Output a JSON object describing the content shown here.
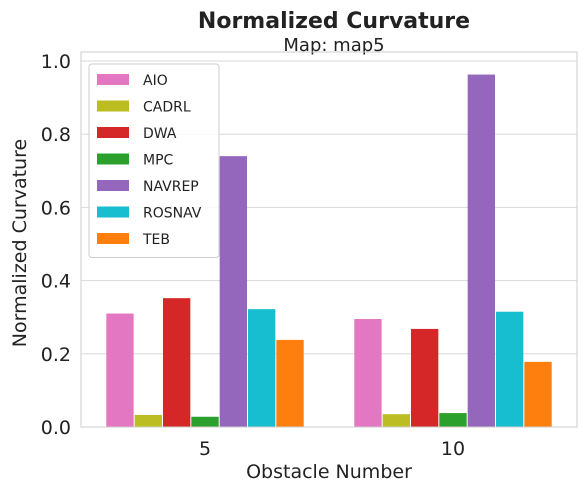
{
  "chart_data": {
    "type": "bar",
    "title": "Normalized Curvature",
    "subtitle": "Map: map5",
    "xlabel": "Obstacle Number",
    "ylabel": "Normalized Curvature",
    "categories": [
      "5",
      "10"
    ],
    "ylim": [
      0,
      1.0
    ],
    "yticks": [
      "0.0",
      "0.2",
      "0.4",
      "0.6",
      "0.8",
      "1.0"
    ],
    "grid": true,
    "legend_position": "top-left",
    "series": [
      {
        "name": "AIO",
        "color": "#e377c2",
        "values": [
          0.31,
          0.295
        ]
      },
      {
        "name": "CADRL",
        "color": "#bcbd22",
        "values": [
          0.033,
          0.035
        ]
      },
      {
        "name": "DWA",
        "color": "#d62728",
        "values": [
          0.352,
          0.268
        ]
      },
      {
        "name": "MPC",
        "color": "#2ca02c",
        "values": [
          0.028,
          0.038
        ]
      },
      {
        "name": "NAVREP",
        "color": "#9467bd",
        "values": [
          0.74,
          0.963
        ]
      },
      {
        "name": "ROSNAV",
        "color": "#17becf",
        "values": [
          0.322,
          0.315
        ]
      },
      {
        "name": "TEB",
        "color": "#ff7f0e",
        "values": [
          0.238,
          0.178
        ]
      }
    ]
  }
}
